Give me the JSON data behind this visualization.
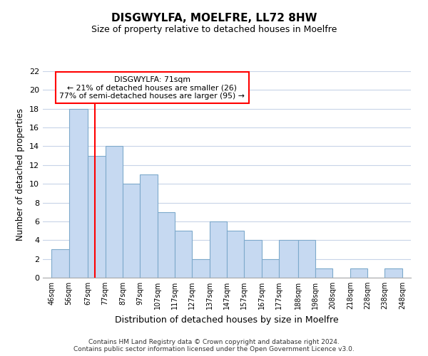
{
  "title": "DISGWYLFA, MOELFRE, LL72 8HW",
  "subtitle": "Size of property relative to detached houses in Moelfre",
  "xlabel": "Distribution of detached houses by size in Moelfre",
  "ylabel": "Number of detached properties",
  "bar_left_edges": [
    46,
    56,
    67,
    77,
    87,
    97,
    107,
    117,
    127,
    137,
    147,
    157,
    167,
    177,
    188,
    198,
    208,
    218,
    228,
    238
  ],
  "bar_widths": [
    10,
    11,
    10,
    10,
    10,
    10,
    10,
    10,
    10,
    10,
    10,
    10,
    10,
    11,
    10,
    10,
    10,
    10,
    10,
    10
  ],
  "bar_heights": [
    3,
    18,
    13,
    14,
    10,
    11,
    7,
    5,
    2,
    6,
    5,
    4,
    2,
    4,
    4,
    1,
    0,
    1,
    0,
    1
  ],
  "bar_fill_color": "#c6d9f1",
  "bar_edge_color": "#7eaacc",
  "tick_labels": [
    "46sqm",
    "56sqm",
    "67sqm",
    "77sqm",
    "87sqm",
    "97sqm",
    "107sqm",
    "117sqm",
    "127sqm",
    "137sqm",
    "147sqm",
    "157sqm",
    "167sqm",
    "177sqm",
    "188sqm",
    "198sqm",
    "208sqm",
    "218sqm",
    "228sqm",
    "238sqm",
    "248sqm"
  ],
  "tick_positions": [
    46,
    56,
    67,
    77,
    87,
    97,
    107,
    117,
    127,
    137,
    147,
    157,
    167,
    177,
    188,
    198,
    208,
    218,
    228,
    238,
    248
  ],
  "ylim": [
    0,
    22
  ],
  "xlim": [
    41,
    253
  ],
  "red_line_x": 71,
  "annotation_title": "DISGWYLFA: 71sqm",
  "annotation_line1": "← 21% of detached houses are smaller (26)",
  "annotation_line2": "77% of semi-detached houses are larger (95) →",
  "footer_line1": "Contains HM Land Registry data © Crown copyright and database right 2024.",
  "footer_line2": "Contains public sector information licensed under the Open Government Licence v3.0.",
  "background_color": "#ffffff",
  "grid_color": "#c8d4e8"
}
